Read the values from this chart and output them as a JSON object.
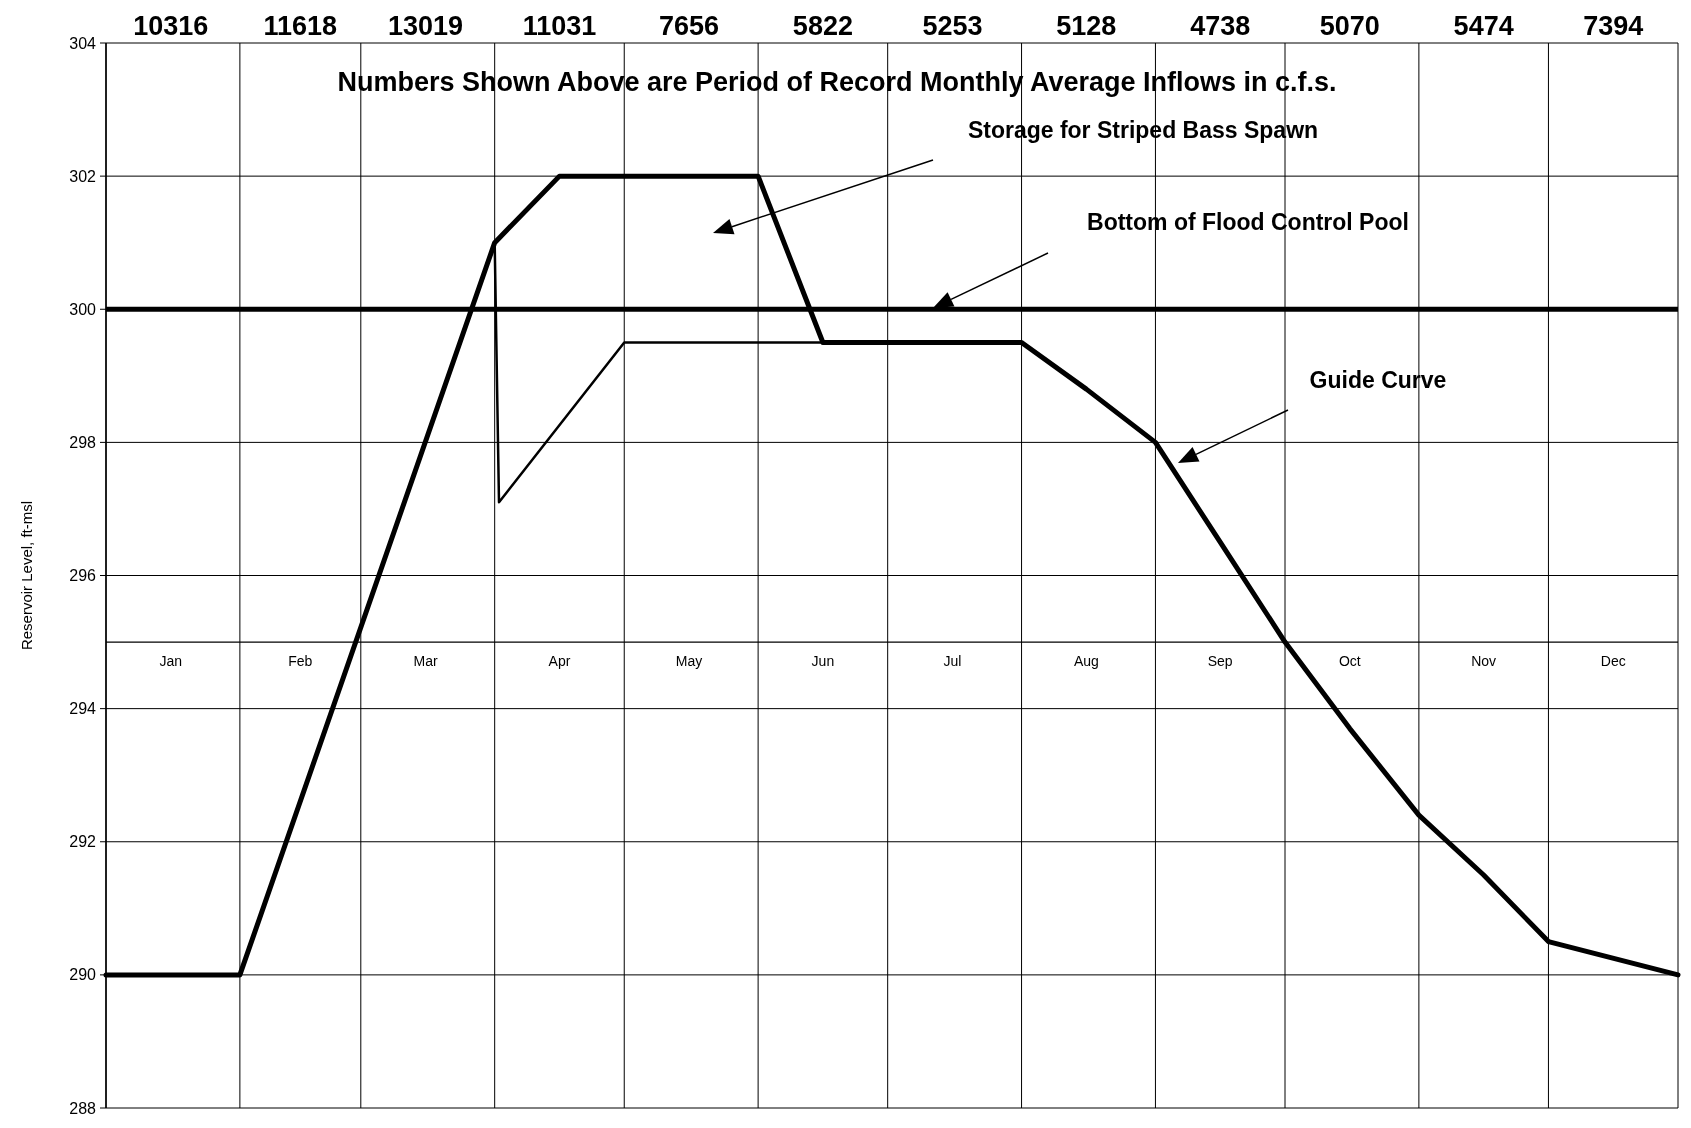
{
  "chart_data": {
    "type": "line",
    "title": "Numbers Shown Above are Period of Record Monthly Average Inflows in c.f.s.",
    "ylabel": "Reservoir Level, ft-msl",
    "xlim": [
      "--01-01",
      "--12-31"
    ],
    "xticks": [
      {
        "value": "--01-01",
        "label": null
      },
      {
        "value": "--01-16",
        "label": "Jan"
      },
      {
        "value": "--02-01",
        "label": null
      },
      {
        "value": "--02-15",
        "label": "Feb"
      },
      {
        "value": "--03-01",
        "label": null
      },
      {
        "value": "--03-16",
        "label": "Mar"
      },
      {
        "value": "--04-01",
        "label": null
      },
      {
        "value": "--04-16",
        "label": "Apr"
      },
      {
        "value": "--05-01",
        "label": null
      },
      {
        "value": "--05-16",
        "label": "May"
      },
      {
        "value": "--06-01",
        "label": null
      },
      {
        "value": "--06-16",
        "label": "Jun"
      },
      {
        "value": "--07-01",
        "label": null
      },
      {
        "value": "--07-16",
        "label": "Jul"
      },
      {
        "value": "--08-01",
        "label": null
      },
      {
        "value": "--08-16",
        "label": "Aug"
      },
      {
        "value": "--09-01",
        "label": null
      },
      {
        "value": "--09-16",
        "label": "Sep"
      },
      {
        "value": "--10-01",
        "label": null
      },
      {
        "value": "--10-16",
        "label": "Oct"
      },
      {
        "value": "--11-01",
        "label": null
      },
      {
        "value": "--11-16",
        "label": "Nov"
      },
      {
        "value": "--12-01",
        "label": null
      },
      {
        "value": "--12-16",
        "label": "Dec"
      },
      {
        "value": "--12-31",
        "label": null
      }
    ],
    "ylim": [
      288,
      304
    ],
    "yticks": [
      288,
      290,
      292,
      294,
      296,
      298,
      300,
      302,
      304
    ],
    "grid": true,
    "marker": "none",
    "line_style": "solid",
    "series": [
      {
        "color": "#000000",
        "x": [
          "--01-01",
          "--02-01",
          "--04-01",
          "--04-16",
          "--06-01",
          "--06-16",
          "--08-01",
          "--08-16",
          "--09-01",
          "--09-16",
          "--10-01",
          "--10-16",
          "--11-01",
          "--11-16",
          "--12-01",
          "--12-31"
        ],
        "values": [
          290,
          290,
          301,
          302,
          302,
          299.5,
          299.5,
          298.8,
          298,
          296.5,
          295,
          293.7,
          292.4,
          291.5,
          290.5,
          290
        ]
      },
      {
        "color": "#000000",
        "x": [
          "--04-01",
          "--04-02",
          "--05-01",
          "--06-16"
        ],
        "values": [
          301,
          297.1,
          299.5,
          299.5
        ]
      }
    ],
    "ref_lines": [
      {
        "axis": "y",
        "value": 300,
        "color": "#000000"
      }
    ],
    "annotations": [
      "10316",
      "11618",
      "13019",
      "11031",
      "7656",
      "5822",
      "5253",
      "5128",
      "4738",
      "5070",
      "5474",
      "7394",
      "Storage for Striped Bass Spawn",
      "Bottom of Flood Control Pool",
      "Guide Curve"
    ]
  }
}
